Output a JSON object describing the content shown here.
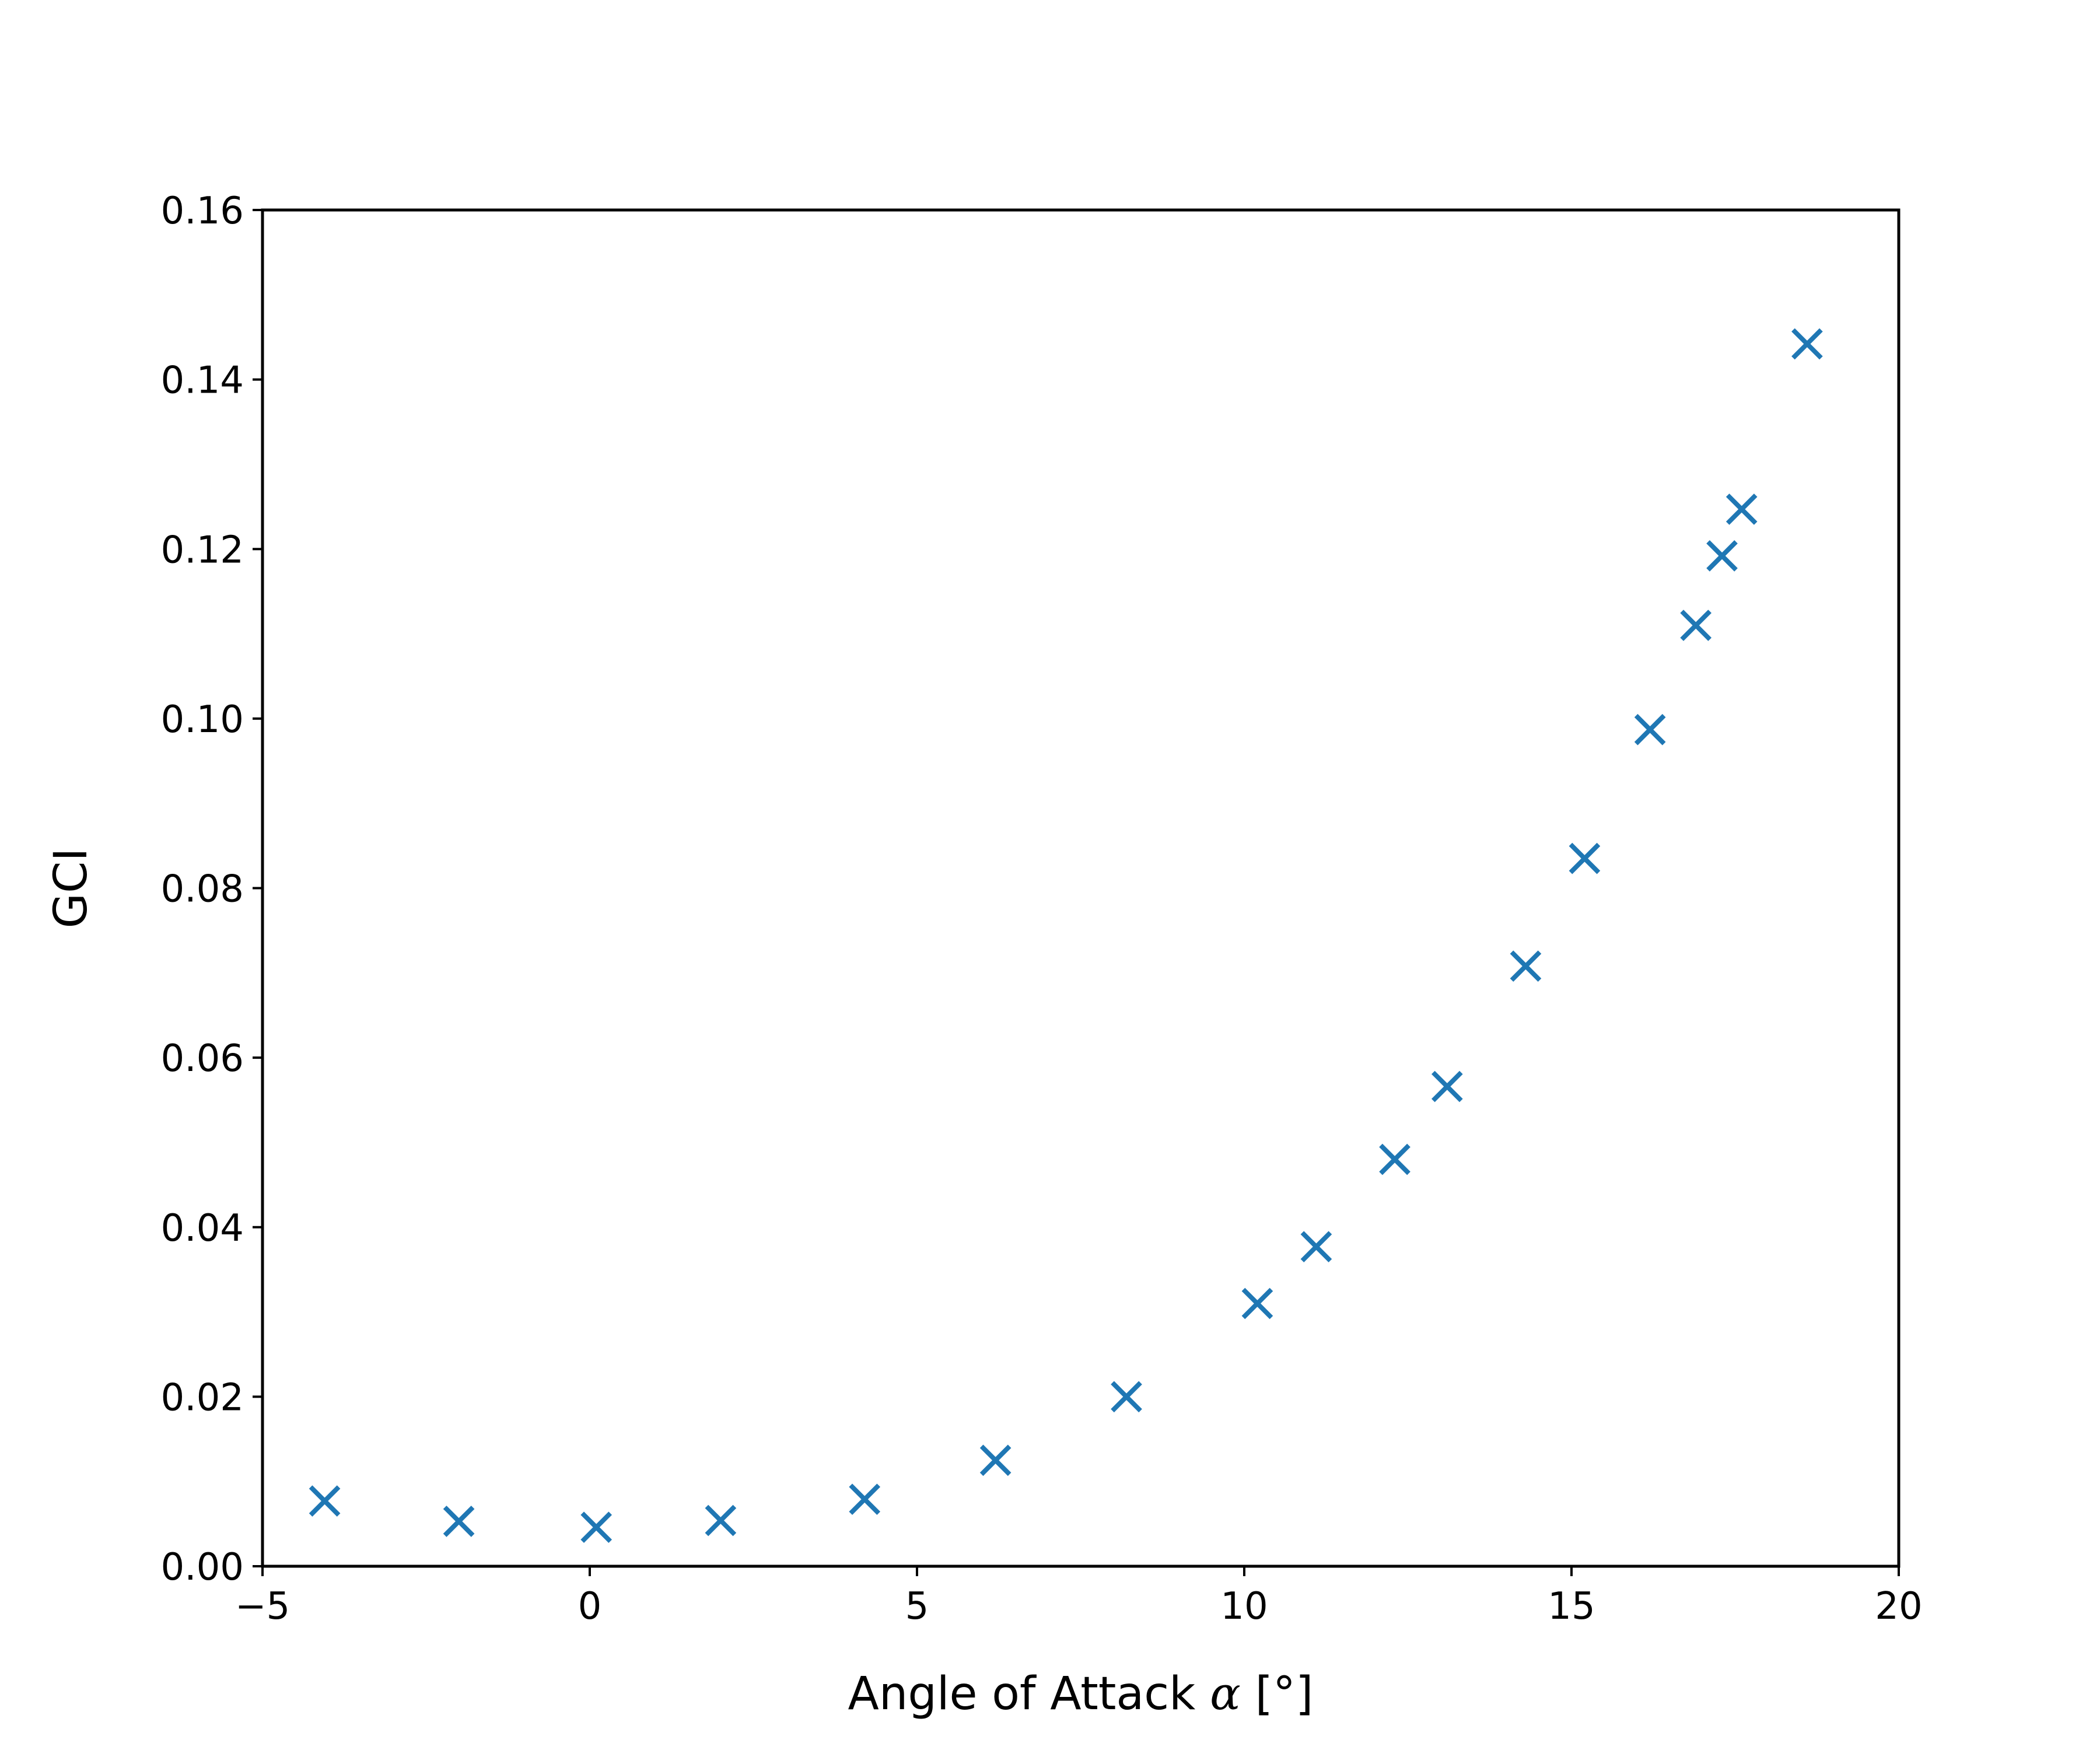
{
  "chart_data": {
    "type": "scatter",
    "title": "",
    "xlabel_prefix": "Angle of Attack ",
    "xlabel_symbol": "α",
    "xlabel_suffix": " [°]",
    "ylabel": "GCI",
    "xlim": [
      -5,
      20
    ],
    "ylim": [
      0,
      0.16
    ],
    "x_ticks": [
      -5,
      0,
      5,
      10,
      15,
      20
    ],
    "x_tick_labels": [
      "−5",
      "0",
      "5",
      "10",
      "15",
      "20"
    ],
    "y_ticks": [
      0,
      0.02,
      0.04,
      0.06,
      0.08,
      0.1,
      0.12,
      0.14,
      0.16
    ],
    "y_tick_labels": [
      "0.00",
      "0.02",
      "0.04",
      "0.06",
      "0.08",
      "0.10",
      "0.12",
      "0.14",
      "0.16"
    ],
    "grid": false,
    "legend": "none",
    "marker": "x",
    "color": "#1f77b4",
    "series": [
      {
        "x": [
          -4.05,
          -2.0,
          0.1,
          2.0,
          4.2,
          6.2,
          8.2,
          10.2,
          11.1,
          12.3,
          13.1,
          14.3,
          15.2,
          16.2,
          16.9,
          17.3,
          17.6,
          18.6
        ],
        "y": [
          0.0077,
          0.0053,
          0.0046,
          0.0054,
          0.0079,
          0.0125,
          0.02,
          0.031,
          0.0377,
          0.048,
          0.0566,
          0.0708,
          0.0835,
          0.0987,
          0.111,
          0.1192,
          0.1247,
          0.1442
        ]
      }
    ]
  }
}
